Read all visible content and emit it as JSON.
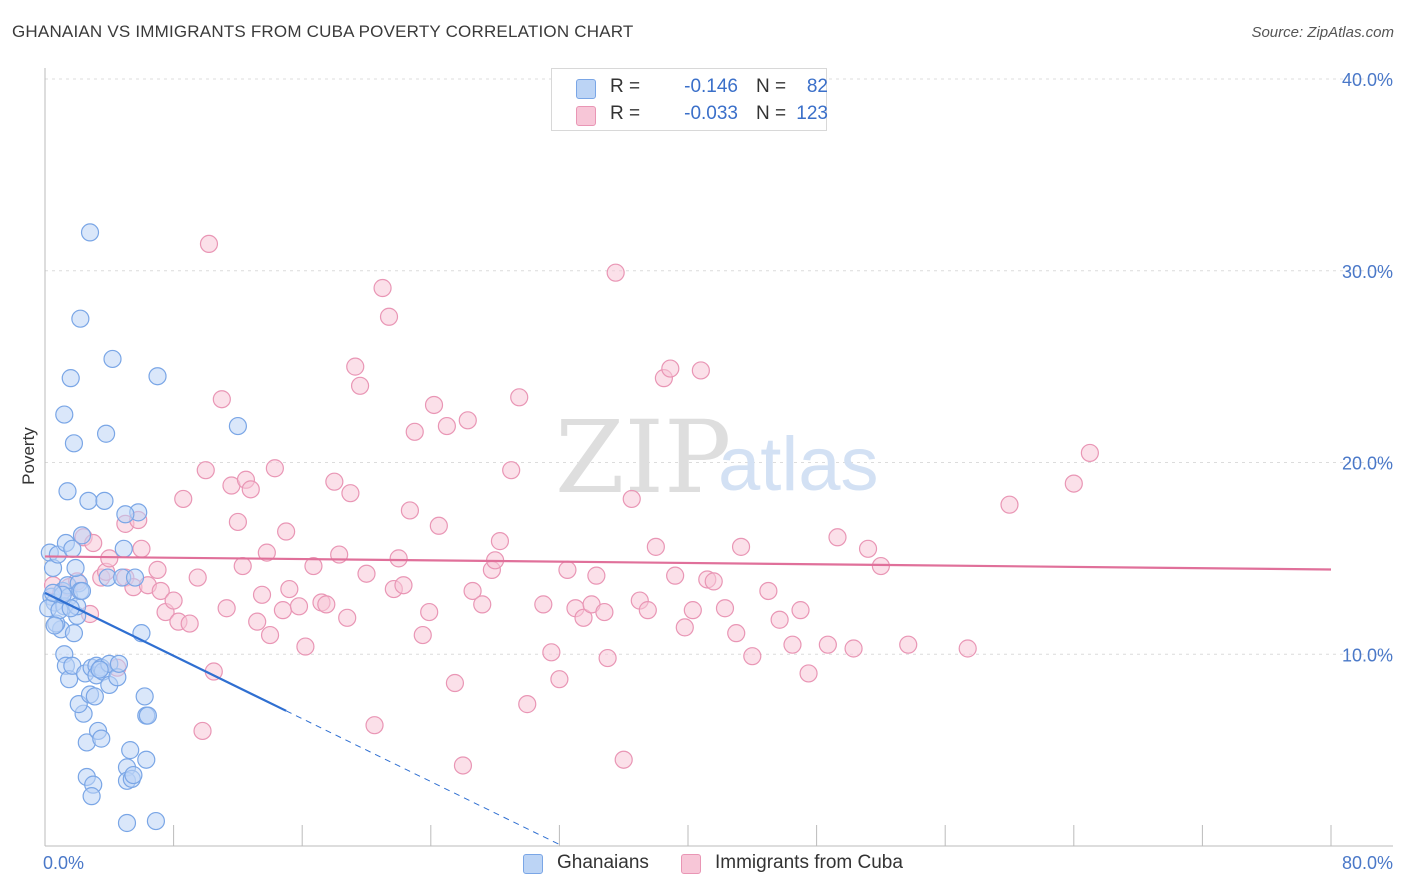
{
  "title": "GHANAIAN VS IMMIGRANTS FROM CUBA POVERTY CORRELATION CHART",
  "source": "Source: ZipAtlas.com",
  "legend": {
    "rows": [
      {
        "r_label": "R =",
        "r_value": "-0.146",
        "n_label": "N =",
        "n_value": "82",
        "color": "#7aa6e6",
        "fill": "#bcd4f5"
      },
      {
        "r_label": "R =",
        "r_value": "-0.033",
        "n_label": "N =",
        "n_value": "123",
        "color": "#e996b5",
        "fill": "#f7c6d7"
      }
    ]
  },
  "bottom_legend": [
    "Ghanaians",
    "Immigrants from Cuba"
  ],
  "chart_data": {
    "type": "scatter",
    "xlabel": "",
    "ylabel": "Poverty",
    "xlim": [
      0,
      80
    ],
    "ylim": [
      0,
      40
    ],
    "x_tick_labels": [
      "0.0%",
      "80.0%"
    ],
    "y_ticks": [
      10,
      20,
      30,
      40
    ],
    "y_tick_labels": [
      "10.0%",
      "20.0%",
      "30.0%",
      "40.0%"
    ],
    "grid": true,
    "watermark": {
      "zip": "ZIP",
      "atlas": "atlas"
    },
    "series": [
      {
        "name": "Ghanaians",
        "color": "#7aa6e6",
        "fill": "#bcd4f5",
        "line_color": "#2f6fd1",
        "trend": {
          "x_start": 0,
          "y_start": 13.2,
          "x_solid_end": 15,
          "x_dash_end": 32,
          "slope": -0.41
        },
        "points": [
          [
            0.3,
            15.3
          ],
          [
            0.5,
            14.5
          ],
          [
            0.4,
            13.0
          ],
          [
            0.6,
            12.7
          ],
          [
            0.2,
            12.4
          ],
          [
            0.8,
            15.2
          ],
          [
            1.0,
            11.3
          ],
          [
            0.7,
            11.6
          ],
          [
            1.1,
            13.3
          ],
          [
            1.2,
            12.5
          ],
          [
            1.3,
            15.8
          ],
          [
            1.4,
            13.6
          ],
          [
            1.5,
            13.0
          ],
          [
            1.7,
            15.5
          ],
          [
            1.8,
            11.1
          ],
          [
            2.0,
            12.0
          ],
          [
            2.1,
            13.7
          ],
          [
            1.2,
            10.0
          ],
          [
            1.3,
            9.4
          ],
          [
            1.5,
            8.7
          ],
          [
            1.7,
            9.4
          ],
          [
            2.0,
            12.5
          ],
          [
            2.2,
            13.3
          ],
          [
            2.3,
            16.2
          ],
          [
            2.5,
            9.0
          ],
          [
            2.4,
            6.9
          ],
          [
            2.1,
            7.4
          ],
          [
            2.6,
            5.4
          ],
          [
            2.6,
            3.6
          ],
          [
            2.7,
            18.0
          ],
          [
            2.8,
            7.9
          ],
          [
            2.9,
            9.3
          ],
          [
            3.0,
            3.2
          ],
          [
            3.1,
            7.8
          ],
          [
            3.2,
            9.4
          ],
          [
            3.2,
            8.9
          ],
          [
            3.3,
            6.0
          ],
          [
            3.5,
            5.6
          ],
          [
            3.5,
            9.3
          ],
          [
            3.6,
            9.1
          ],
          [
            3.7,
            18.0
          ],
          [
            3.8,
            21.5
          ],
          [
            3.9,
            14.0
          ],
          [
            4.0,
            8.4
          ],
          [
            4.0,
            9.5
          ],
          [
            4.2,
            25.4
          ],
          [
            4.5,
            8.8
          ],
          [
            4.6,
            9.5
          ],
          [
            4.8,
            14.0
          ],
          [
            4.9,
            15.5
          ],
          [
            5.1,
            4.1
          ],
          [
            5.1,
            3.4
          ],
          [
            5.3,
            5.0
          ],
          [
            5.4,
            3.5
          ],
          [
            5.5,
            3.7
          ],
          [
            5.6,
            14.0
          ],
          [
            5.8,
            17.4
          ],
          [
            6.0,
            11.1
          ],
          [
            6.2,
            7.8
          ],
          [
            6.3,
            4.5
          ],
          [
            6.3,
            6.8
          ],
          [
            6.4,
            6.8
          ],
          [
            7.0,
            24.5
          ],
          [
            1.6,
            24.4
          ],
          [
            1.8,
            21.0
          ],
          [
            2.2,
            27.5
          ],
          [
            1.2,
            22.5
          ],
          [
            2.8,
            32.0
          ],
          [
            1.4,
            18.5
          ],
          [
            0.9,
            12.3
          ],
          [
            1.6,
            12.4
          ],
          [
            2.9,
            2.6
          ],
          [
            5.1,
            1.2
          ],
          [
            6.9,
            1.3
          ],
          [
            12.0,
            21.9
          ],
          [
            1.1,
            13.1
          ],
          [
            0.5,
            13.2
          ],
          [
            1.9,
            14.5
          ],
          [
            2.3,
            13.3
          ],
          [
            5.0,
            17.3
          ],
          [
            0.6,
            11.5
          ],
          [
            3.4,
            9.2
          ]
        ]
      },
      {
        "name": "Immigrants from Cuba",
        "color": "#e996b5",
        "fill": "#f7c6d7",
        "line_color": "#e0709a",
        "trend": {
          "x_start": 0,
          "y_start": 15.1,
          "x_end": 80,
          "slope": -0.0085
        },
        "points": [
          [
            0.5,
            13.6
          ],
          [
            1.0,
            13.2
          ],
          [
            1.5,
            13.5
          ],
          [
            2.0,
            13.8
          ],
          [
            2.4,
            16.1
          ],
          [
            2.8,
            12.1
          ],
          [
            3.0,
            15.8
          ],
          [
            3.5,
            14.0
          ],
          [
            3.8,
            14.3
          ],
          [
            4.0,
            15.0
          ],
          [
            4.5,
            9.3
          ],
          [
            5.0,
            16.8
          ],
          [
            5.0,
            14.0
          ],
          [
            5.5,
            13.5
          ],
          [
            5.8,
            17.0
          ],
          [
            6.0,
            15.5
          ],
          [
            6.4,
            13.6
          ],
          [
            7.0,
            14.4
          ],
          [
            7.2,
            13.3
          ],
          [
            7.5,
            12.2
          ],
          [
            8.0,
            12.8
          ],
          [
            8.3,
            11.7
          ],
          [
            8.6,
            18.1
          ],
          [
            9.0,
            11.6
          ],
          [
            9.5,
            14.0
          ],
          [
            9.8,
            6.0
          ],
          [
            10.0,
            19.6
          ],
          [
            10.2,
            31.4
          ],
          [
            10.5,
            9.1
          ],
          [
            11.0,
            23.3
          ],
          [
            11.3,
            12.4
          ],
          [
            11.6,
            18.8
          ],
          [
            12.0,
            16.9
          ],
          [
            12.3,
            14.6
          ],
          [
            12.5,
            19.1
          ],
          [
            12.8,
            18.6
          ],
          [
            13.2,
            11.7
          ],
          [
            13.5,
            13.1
          ],
          [
            13.8,
            15.3
          ],
          [
            14.0,
            11.0
          ],
          [
            14.3,
            19.7
          ],
          [
            14.8,
            12.3
          ],
          [
            15.0,
            16.4
          ],
          [
            15.2,
            13.4
          ],
          [
            15.8,
            12.5
          ],
          [
            16.2,
            10.4
          ],
          [
            16.7,
            14.6
          ],
          [
            17.2,
            12.7
          ],
          [
            17.5,
            12.6
          ],
          [
            18.0,
            19.0
          ],
          [
            18.3,
            15.2
          ],
          [
            18.8,
            11.9
          ],
          [
            19.0,
            18.4
          ],
          [
            19.3,
            25.0
          ],
          [
            19.6,
            24.0
          ],
          [
            20.0,
            14.2
          ],
          [
            20.5,
            6.3
          ],
          [
            21.0,
            29.1
          ],
          [
            21.4,
            27.6
          ],
          [
            21.7,
            13.4
          ],
          [
            22.0,
            15.0
          ],
          [
            22.3,
            13.6
          ],
          [
            22.7,
            17.5
          ],
          [
            23.0,
            21.6
          ],
          [
            23.5,
            11.0
          ],
          [
            23.9,
            12.2
          ],
          [
            24.2,
            23.0
          ],
          [
            24.5,
            16.7
          ],
          [
            25.0,
            21.9
          ],
          [
            25.5,
            8.5
          ],
          [
            26.0,
            4.2
          ],
          [
            26.3,
            22.2
          ],
          [
            26.6,
            13.3
          ],
          [
            27.2,
            12.6
          ],
          [
            27.8,
            14.4
          ],
          [
            28.0,
            14.9
          ],
          [
            28.3,
            15.9
          ],
          [
            29.0,
            19.6
          ],
          [
            29.5,
            23.4
          ],
          [
            30.0,
            7.4
          ],
          [
            31.0,
            12.6
          ],
          [
            31.5,
            10.1
          ],
          [
            32.0,
            8.7
          ],
          [
            32.5,
            14.4
          ],
          [
            33.0,
            12.4
          ],
          [
            33.5,
            11.9
          ],
          [
            34.0,
            12.6
          ],
          [
            34.3,
            14.1
          ],
          [
            34.8,
            12.2
          ],
          [
            35.0,
            9.8
          ],
          [
            35.5,
            29.9
          ],
          [
            36.0,
            4.5
          ],
          [
            36.5,
            18.1
          ],
          [
            37.0,
            12.8
          ],
          [
            37.5,
            12.3
          ],
          [
            38.0,
            15.6
          ],
          [
            38.5,
            24.4
          ],
          [
            38.9,
            24.9
          ],
          [
            39.2,
            14.1
          ],
          [
            39.8,
            11.4
          ],
          [
            40.3,
            12.3
          ],
          [
            40.8,
            24.8
          ],
          [
            41.2,
            13.9
          ],
          [
            41.6,
            13.8
          ],
          [
            42.3,
            12.4
          ],
          [
            43.0,
            11.1
          ],
          [
            43.3,
            15.6
          ],
          [
            44.0,
            9.9
          ],
          [
            45.0,
            13.3
          ],
          [
            45.7,
            11.8
          ],
          [
            46.5,
            10.5
          ],
          [
            47.0,
            12.3
          ],
          [
            47.5,
            9.0
          ],
          [
            48.7,
            10.5
          ],
          [
            49.3,
            16.1
          ],
          [
            50.3,
            10.3
          ],
          [
            51.2,
            15.5
          ],
          [
            52.0,
            14.6
          ],
          [
            53.7,
            10.5
          ],
          [
            57.4,
            10.3
          ],
          [
            60.0,
            17.8
          ],
          [
            64.0,
            18.9
          ],
          [
            65.0,
            20.5
          ]
        ]
      }
    ]
  }
}
